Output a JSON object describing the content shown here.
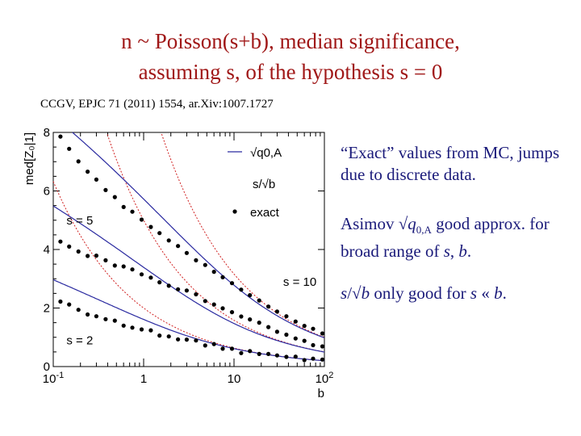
{
  "title_line1": "n ~ Poisson(s+b),  median significance,",
  "title_line2": "assuming s, of the hypothesis s = 0",
  "reference": "CCGV, EPJC 71 (2011) 1554, ar.Xiv:1007.1727",
  "notes": [
    {
      "text": "“Exact” values from MC, jumps due to discrete data."
    },
    {
      "prefix": "Asimov √",
      "var": "q",
      "sub": "0,A",
      "suffix": " good approx. for broad range of ",
      "s": "s",
      "comma": ", ",
      "b": "b",
      "end": "."
    },
    {
      "s": "s",
      "slash": "/√",
      "b": "b",
      "mid": " only good for ",
      "s2": "s",
      "ll": " « ",
      "b2": "b",
      "end": "."
    }
  ],
  "colors": {
    "title": "#a01818",
    "notes": "#1a1a7a",
    "asimov": "#2a2aa0",
    "s_over_sqrt_b": "#d02020",
    "exact": "#000000"
  },
  "chart_data": {
    "type": "scatter",
    "xlabel": "b",
    "ylabel": "med[Z₀|1]",
    "xscale": "log",
    "xlim": [
      0.1,
      100
    ],
    "ylim": [
      0,
      8
    ],
    "xticks": [
      {
        "v": 0.1,
        "label": "10",
        "sup": "-1"
      },
      {
        "v": 1,
        "label": "1"
      },
      {
        "v": 10,
        "label": "10"
      },
      {
        "v": 100,
        "label": "10",
        "sup": "2"
      }
    ],
    "yticks": [
      0,
      2,
      4,
      6,
      8
    ],
    "legend": {
      "asimov": "√q0,A",
      "sb": "s/√b",
      "exact": "exact",
      "position": "top-right"
    },
    "curve_labels": [
      {
        "text": "s = 5",
        "x": 0.14,
        "y": 5.0
      },
      {
        "text": "s = 10",
        "x": 35,
        "y": 2.9
      },
      {
        "text": "s = 2",
        "x": 0.14,
        "y": 0.9
      }
    ],
    "series": [
      {
        "s": 2,
        "x": [
          0.12,
          0.15,
          0.19,
          0.24,
          0.3,
          0.38,
          0.48,
          0.6,
          0.75,
          0.95,
          1.2,
          1.5,
          1.9,
          2.4,
          3.0,
          3.8,
          4.8,
          6.0,
          7.5,
          9.5,
          12,
          15,
          19,
          24,
          30,
          38,
          48,
          60,
          75,
          95
        ],
        "y": [
          2.22,
          2.12,
          1.94,
          1.78,
          1.72,
          1.62,
          1.57,
          1.4,
          1.33,
          1.27,
          1.24,
          1.06,
          1.03,
          0.93,
          0.92,
          0.89,
          0.72,
          0.77,
          0.61,
          0.61,
          0.46,
          0.53,
          0.43,
          0.43,
          0.38,
          0.33,
          0.34,
          0.22,
          0.27,
          0.24
        ]
      },
      {
        "s": 5,
        "x": [
          0.12,
          0.15,
          0.19,
          0.24,
          0.3,
          0.38,
          0.48,
          0.6,
          0.75,
          0.95,
          1.2,
          1.5,
          1.9,
          2.4,
          3.0,
          3.8,
          4.8,
          6.0,
          7.5,
          9.5,
          12,
          15,
          19,
          24,
          30,
          38,
          48,
          60,
          75,
          95
        ],
        "y": [
          4.27,
          4.1,
          3.93,
          3.78,
          3.79,
          3.63,
          3.45,
          3.42,
          3.32,
          3.15,
          3.04,
          2.88,
          2.76,
          2.64,
          2.6,
          2.47,
          2.24,
          2.12,
          1.99,
          1.86,
          1.71,
          1.61,
          1.5,
          1.35,
          1.19,
          1.09,
          0.96,
          0.88,
          0.73,
          0.69
        ]
      },
      {
        "s": 10,
        "x": [
          0.12,
          0.15,
          0.19,
          0.24,
          0.3,
          0.38,
          0.48,
          0.6,
          0.75,
          0.95,
          1.2,
          1.5,
          1.9,
          2.4,
          3.0,
          3.8,
          4.8,
          6.0,
          7.5,
          9.5,
          12,
          15,
          19,
          24,
          30,
          38,
          48,
          60,
          75,
          95
        ],
        "y": [
          7.86,
          7.44,
          7.01,
          6.66,
          6.39,
          6.03,
          5.79,
          5.45,
          5.29,
          5.02,
          4.77,
          4.56,
          4.31,
          4.12,
          3.88,
          3.63,
          3.47,
          3.24,
          3.05,
          2.85,
          2.63,
          2.44,
          2.26,
          2.05,
          1.88,
          1.72,
          1.54,
          1.39,
          1.29,
          1.13
        ]
      }
    ]
  }
}
